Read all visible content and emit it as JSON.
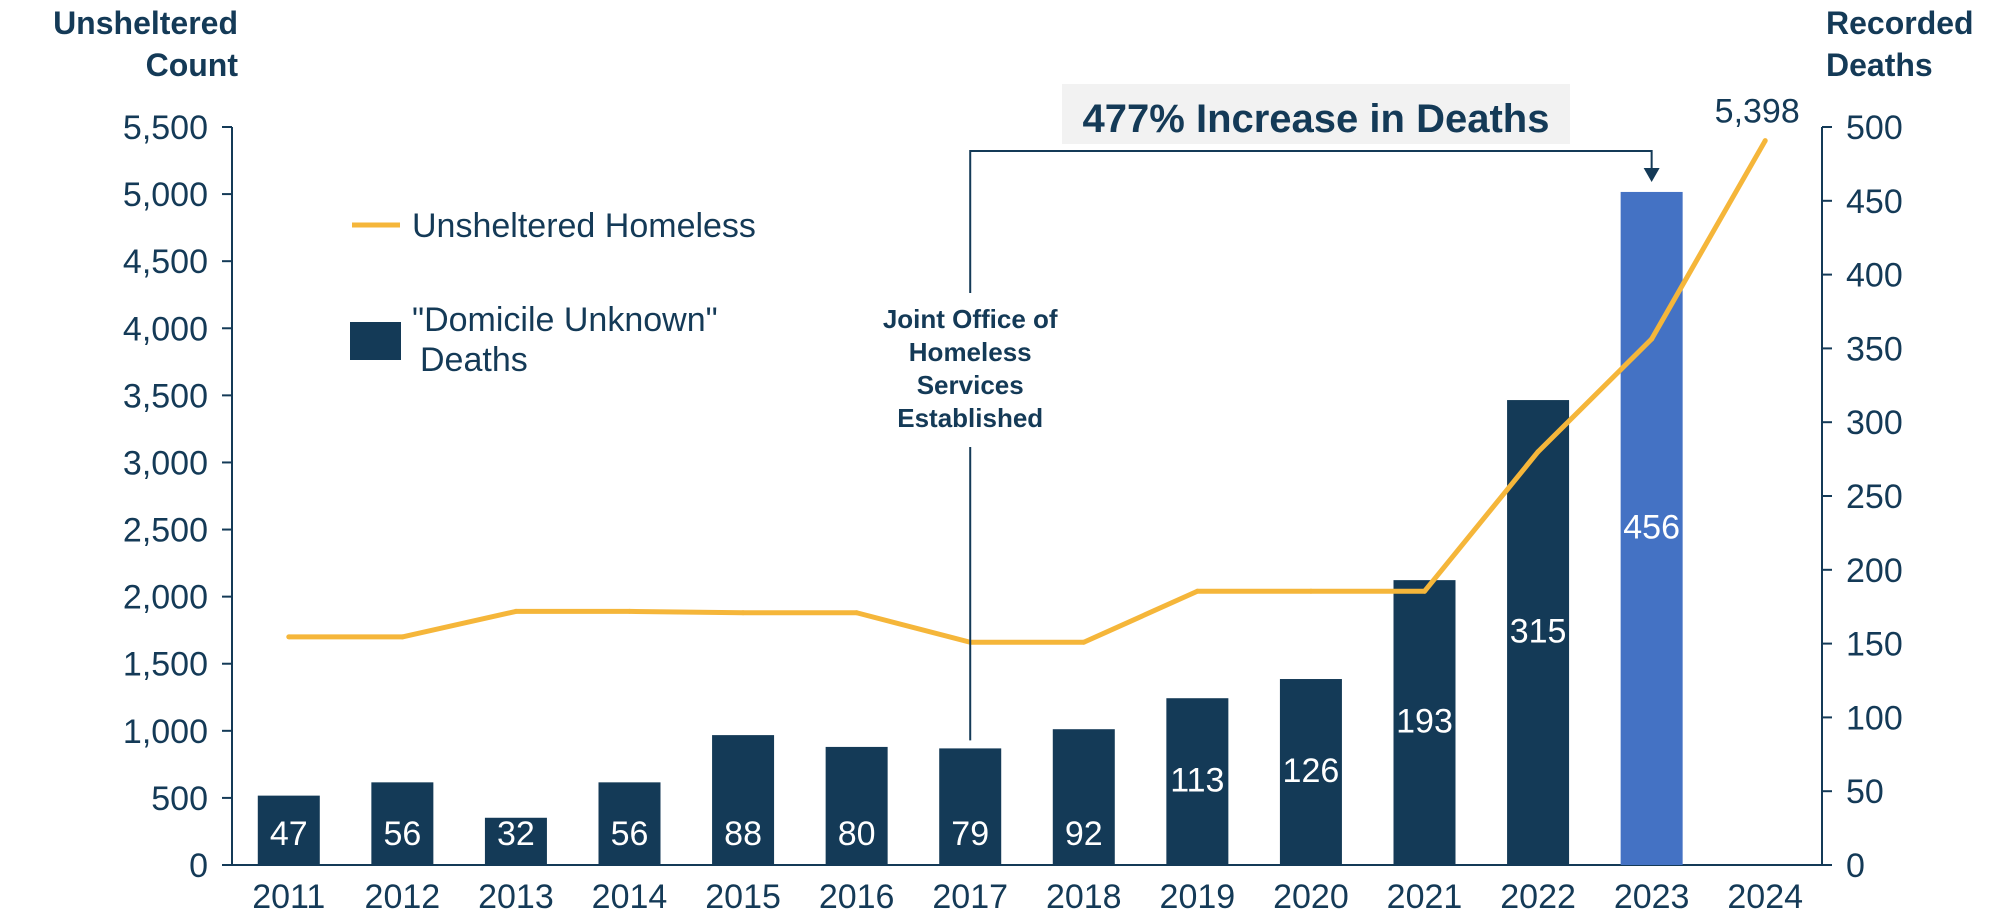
{
  "chart_data": {
    "type": "bar",
    "categories": [
      "2011",
      "2012",
      "2013",
      "2014",
      "2015",
      "2016",
      "2017",
      "2018",
      "2019",
      "2020",
      "2021",
      "2022",
      "2023",
      "2024"
    ],
    "series": [
      {
        "name": "\"Domicile Unknown\" Deaths",
        "type": "bar",
        "axis": "right",
        "values": [
          47,
          56,
          32,
          56,
          88,
          80,
          79,
          92,
          113,
          126,
          193,
          315,
          456,
          null
        ]
      },
      {
        "name": "Unsheltered Homeless",
        "type": "line",
        "axis": "left",
        "values": [
          1700,
          1700,
          1890,
          1890,
          1880,
          1880,
          1660,
          1660,
          2040,
          2040,
          2040,
          3080,
          3920,
          5398
        ]
      }
    ],
    "ylabel_left": [
      "Unsheltered",
      "Count"
    ],
    "ylabel_right": [
      "Recorded",
      "Deaths"
    ],
    "ylim_left": [
      0,
      5500
    ],
    "yticks_left": [
      "0",
      "500",
      "1,000",
      "1,500",
      "2,000",
      "2,500",
      "3,000",
      "3,500",
      "4,000",
      "4,500",
      "5,000",
      "5,500"
    ],
    "ylim_right": [
      0,
      500
    ],
    "yticks_right": [
      "0",
      "50",
      "100",
      "150",
      "200",
      "250",
      "300",
      "350",
      "400",
      "450",
      "500"
    ],
    "line_end_label": "5,398",
    "annotations": {
      "increase": "477% Increase in Deaths",
      "joint_office": [
        "Joint Office of",
        "Homeless",
        "Services",
        "Established"
      ]
    },
    "legend": {
      "line": "Unsheltered Homeless",
      "bar_line1": "\"Domicile Unknown\"",
      "bar_line2": "Deaths"
    },
    "colors": {
      "bar": "#143a57",
      "bar_highlight": "#4472c4",
      "line": "#f5b63a",
      "text": "#143a57"
    },
    "grid": false
  }
}
